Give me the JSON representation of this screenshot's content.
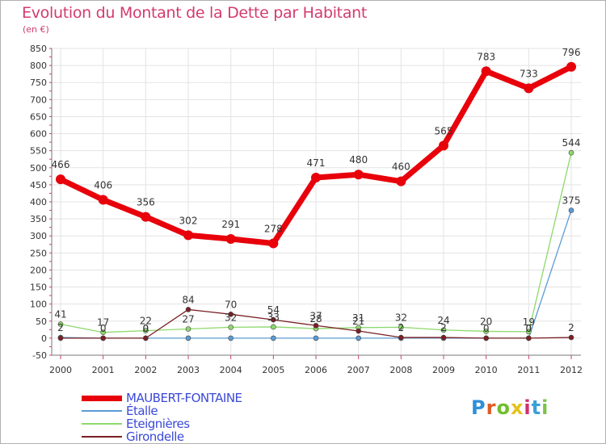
{
  "title": "Evolution du Montant de la Dette par Habitant",
  "unit": "(en €)",
  "brand": {
    "name": "Proxiti",
    "letters": [
      "P",
      "r",
      "o",
      "x",
      "i",
      "t",
      "i"
    ],
    "letter_colors": [
      "#2f8fd8",
      "#e05a1f",
      "#6fbf2a",
      "#e3c21b",
      "#d2306f",
      "#3aa0d8",
      "#7cc24a"
    ]
  },
  "chart_data": {
    "type": "line",
    "title": "Evolution du Montant de la Dette par Habitant",
    "ylabel": "(en €)",
    "xlabel": "",
    "x": [
      "2000",
      "2001",
      "2002",
      "2003",
      "2004",
      "2005",
      "2006",
      "2007",
      "2008",
      "2009",
      "2010",
      "2011",
      "2012"
    ],
    "y_ticks": [
      -50,
      0,
      50,
      100,
      150,
      200,
      250,
      300,
      350,
      400,
      450,
      500,
      550,
      600,
      650,
      700,
      750,
      800,
      850
    ],
    "ylim": [
      -50,
      850
    ],
    "grid": true,
    "legend_position": "bottom-left",
    "series": [
      {
        "name": "MAUBERT-FONTAINE",
        "color": "#e8000b",
        "values": [
          466,
          406,
          356,
          302,
          291,
          278,
          471,
          480,
          460,
          565,
          783,
          733,
          796
        ],
        "labels": [
          "466",
          "406",
          "356",
          "302",
          "291",
          "278",
          "471",
          "480",
          "460",
          "565",
          "783",
          "733",
          "796"
        ]
      },
      {
        "name": "Étalle",
        "color": "#5b9bd5",
        "values": [
          2,
          0,
          0,
          0,
          0,
          0,
          0,
          0,
          0,
          0,
          0,
          0,
          375
        ],
        "labels": [
          "2",
          "0",
          "0",
          "",
          "",
          "",
          "",
          "",
          "",
          "",
          "",
          "0",
          "375"
        ]
      },
      {
        "name": "Eteignières",
        "color": "#8cd96b",
        "values": [
          41,
          17,
          22,
          27,
          32,
          33,
          28,
          31,
          32,
          24,
          20,
          19,
          544
        ],
        "labels": [
          "41",
          "17",
          "22",
          "27",
          "32",
          "33",
          "28",
          "31",
          "32",
          "24",
          "20",
          "19",
          "544"
        ]
      },
      {
        "name": "Girondelle",
        "color": "#7a1f23",
        "values": [
          0,
          0,
          0,
          84,
          70,
          54,
          37,
          21,
          2,
          2,
          0,
          0,
          2
        ],
        "labels": [
          "",
          "",
          "0",
          "84",
          "70",
          "54",
          "37",
          "21",
          "2",
          "2",
          "0",
          "0",
          "2"
        ]
      }
    ]
  }
}
